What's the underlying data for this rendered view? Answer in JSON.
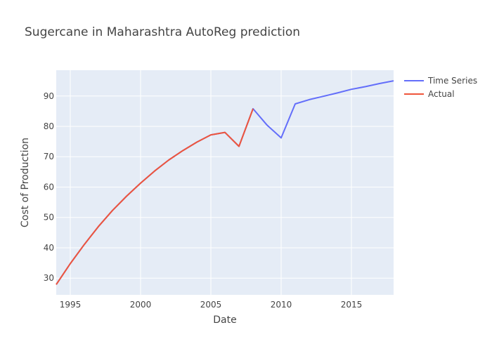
{
  "chart_data": {
    "type": "line",
    "title": "Sugercane in Maharashtra AutoReg prediction",
    "xlabel": "Date",
    "ylabel": "Cost of Production",
    "xlim": [
      1994,
      2018
    ],
    "ylim": [
      24.5,
      98.5
    ],
    "x_ticks": [
      "1995",
      "2000",
      "2005",
      "2010",
      "2015"
    ],
    "y_ticks": [
      "30",
      "40",
      "50",
      "60",
      "70",
      "80",
      "90"
    ],
    "grid": true,
    "legend_position": "top-right",
    "colors": {
      "plot_bg": "#e5ecf6",
      "grid": "#ffffff"
    },
    "series": [
      {
        "name": "Time Series",
        "color": "#636efa",
        "x": [
          1994,
          1995,
          1996,
          1997,
          1998,
          1999,
          2000,
          2001,
          2002,
          2003,
          2004,
          2005,
          2006,
          2007,
          2008,
          2009,
          2010,
          2011,
          2012,
          2013,
          2014,
          2015,
          2016,
          2017,
          2018
        ],
        "y": [
          27.9,
          34.8,
          41.1,
          47.0,
          52.3,
          57.0,
          61.3,
          65.3,
          68.9,
          72.0,
          74.8,
          77.2,
          78.0,
          73.4,
          85.8,
          80.4,
          76.2,
          87.4,
          88.8,
          89.9,
          91.0,
          92.2,
          93.1,
          94.1,
          95.0
        ]
      },
      {
        "name": "Actual",
        "color": "#ef553b",
        "x": [
          1994,
          1995,
          1996,
          1997,
          1998,
          1999,
          2000,
          2001,
          2002,
          2003,
          2004,
          2005,
          2006,
          2007,
          2008
        ],
        "y": [
          27.9,
          34.8,
          41.1,
          47.0,
          52.3,
          57.0,
          61.3,
          65.3,
          68.9,
          72.0,
          74.8,
          77.2,
          78.0,
          73.4,
          85.8
        ]
      }
    ]
  }
}
